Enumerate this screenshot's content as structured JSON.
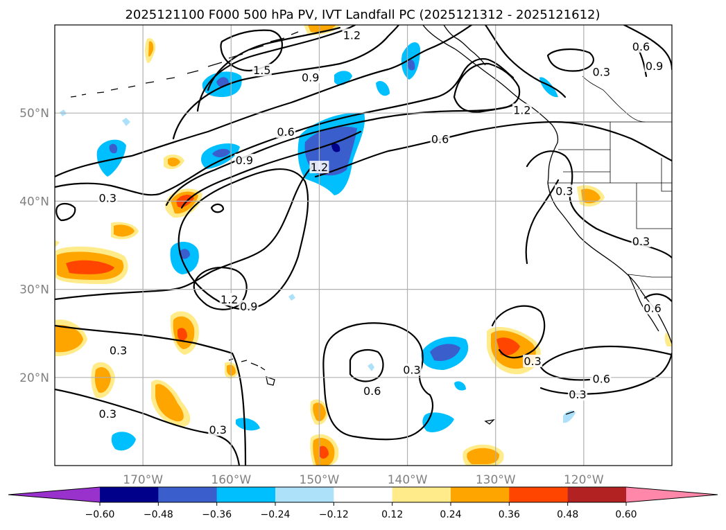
{
  "title": "2025121100 F000 500 hPa PV, IVT Landfall PC (2025121312 - 2025121612)",
  "map": {
    "lon_range": [
      -180,
      -110
    ],
    "lat_range": [
      10,
      60
    ],
    "lon_ticks": [
      {
        "lon": -170,
        "label": "170°W"
      },
      {
        "lon": -160,
        "label": "160°W"
      },
      {
        "lon": -150,
        "label": "150°W"
      },
      {
        "lon": -140,
        "label": "140°W"
      },
      {
        "lon": -130,
        "label": "130°W"
      },
      {
        "lon": -120,
        "label": "120°W"
      }
    ],
    "lat_ticks": [
      {
        "lat": 50,
        "label": "50°N"
      },
      {
        "lat": 40,
        "label": "40°N"
      },
      {
        "lat": 30,
        "label": "30°N"
      },
      {
        "lat": 20,
        "label": "20°N"
      }
    ],
    "grid": true
  },
  "colorbar": {
    "levels": [
      "−0.60",
      "−0.48",
      "−0.36",
      "−0.24",
      "−0.12",
      "0.12",
      "0.24",
      "0.36",
      "0.48",
      "0.60"
    ],
    "colors": [
      "#9932CC",
      "#00008B",
      "#3A5FCD",
      "#00BFFF",
      "#ADE1FA",
      "#FFFFFF",
      "#FFEB8A",
      "#FFA500",
      "#FF4500",
      "#B22222",
      "#FF88AA"
    ],
    "extend": "both"
  },
  "contour_labels": [
    {
      "text": "1.2",
      "lon": -146.3,
      "lat": 58.8
    },
    {
      "text": "1.5",
      "lon": -156.5,
      "lat": 54.8
    },
    {
      "text": "0.9",
      "lon": -151.0,
      "lat": 54.0
    },
    {
      "text": "0.6",
      "lon": -113.5,
      "lat": 57.5
    },
    {
      "text": "0.3",
      "lon": -118.0,
      "lat": 54.6
    },
    {
      "text": "0.9",
      "lon": -112.0,
      "lat": 55.3
    },
    {
      "text": "1.2",
      "lon": -127.0,
      "lat": 50.3
    },
    {
      "text": "0.6",
      "lon": -153.8,
      "lat": 47.8
    },
    {
      "text": "0.6",
      "lon": -136.3,
      "lat": 47.0
    },
    {
      "text": "0.9",
      "lon": -158.5,
      "lat": 44.6
    },
    {
      "text": "1.2",
      "lon": -150.0,
      "lat": 43.8
    },
    {
      "text": "0.3",
      "lon": -174.0,
      "lat": 40.3
    },
    {
      "text": "0.3",
      "lon": -122.2,
      "lat": 41.1
    },
    {
      "text": "0.3",
      "lon": -113.5,
      "lat": 35.4
    },
    {
      "text": "1.2",
      "lon": -160.2,
      "lat": 28.8
    },
    {
      "text": "0.9",
      "lon": -158.0,
      "lat": 28.0
    },
    {
      "text": "0.3",
      "lon": -172.8,
      "lat": 23.0
    },
    {
      "text": "0.3",
      "lon": -125.8,
      "lat": 21.8
    },
    {
      "text": "0.6",
      "lon": -112.2,
      "lat": 27.8
    },
    {
      "text": "0.3",
      "lon": -139.5,
      "lat": 20.8
    },
    {
      "text": "0.6",
      "lon": -144.0,
      "lat": 18.4
    },
    {
      "text": "0.6",
      "lon": -118.0,
      "lat": 19.8
    },
    {
      "text": "0.3",
      "lon": -120.7,
      "lat": 18.0
    },
    {
      "text": "0.3",
      "lon": -174.0,
      "lat": 15.8
    },
    {
      "text": "0.3",
      "lon": -161.5,
      "lat": 14.0
    }
  ]
}
